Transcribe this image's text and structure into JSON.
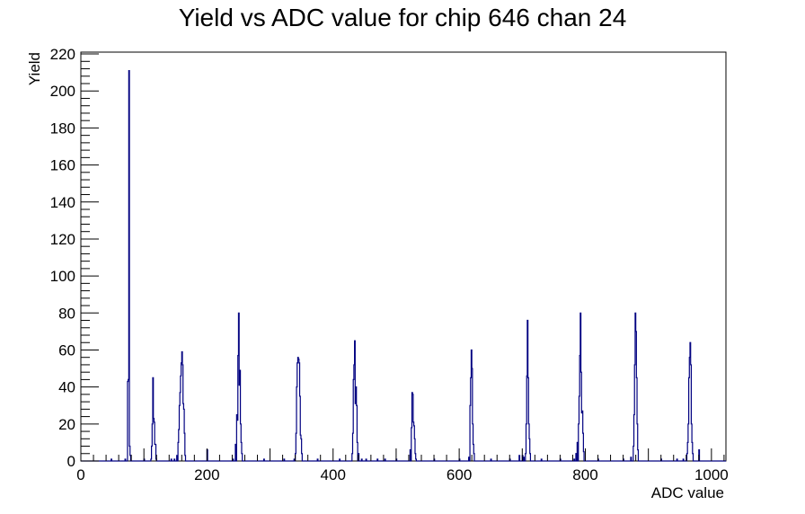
{
  "chart_data": {
    "type": "histogram",
    "title": "Yield vs ADC value for chip 646 chan 24",
    "xlabel": "ADC value",
    "ylabel": "Yield",
    "xlim": [
      0,
      1023
    ],
    "ylim": [
      0,
      221
    ],
    "x_ticks": [
      0,
      200,
      400,
      600,
      800,
      1000
    ],
    "y_ticks": [
      0,
      20,
      40,
      60,
      80,
      100,
      120,
      140,
      160,
      180,
      200,
      220
    ],
    "line_color": "#000080",
    "bins": [
      [
        48,
        1
      ],
      [
        70,
        1
      ],
      [
        74,
        43
      ],
      [
        75,
        44
      ],
      [
        76,
        211
      ],
      [
        77,
        8
      ],
      [
        78,
        3
      ],
      [
        100,
        1
      ],
      [
        111,
        1
      ],
      [
        112,
        8
      ],
      [
        113,
        20
      ],
      [
        114,
        45
      ],
      [
        115,
        23
      ],
      [
        116,
        21
      ],
      [
        117,
        9
      ],
      [
        118,
        9
      ],
      [
        119,
        1
      ],
      [
        143,
        1
      ],
      [
        148,
        1
      ],
      [
        152,
        3
      ],
      [
        154,
        10
      ],
      [
        155,
        17
      ],
      [
        156,
        30
      ],
      [
        157,
        37
      ],
      [
        158,
        46
      ],
      [
        159,
        53
      ],
      [
        160,
        59
      ],
      [
        161,
        52
      ],
      [
        162,
        31
      ],
      [
        163,
        28
      ],
      [
        164,
        15
      ],
      [
        165,
        3
      ],
      [
        200,
        6
      ],
      [
        241,
        1
      ],
      [
        245,
        9
      ],
      [
        247,
        25
      ],
      [
        248,
        22
      ],
      [
        249,
        57
      ],
      [
        250,
        80
      ],
      [
        251,
        41
      ],
      [
        252,
        49
      ],
      [
        253,
        20
      ],
      [
        254,
        10
      ],
      [
        255,
        4
      ],
      [
        290,
        1
      ],
      [
        322,
        1
      ],
      [
        338,
        1
      ],
      [
        340,
        4
      ],
      [
        341,
        15
      ],
      [
        342,
        40
      ],
      [
        343,
        53
      ],
      [
        344,
        56
      ],
      [
        345,
        55
      ],
      [
        346,
        53
      ],
      [
        347,
        35
      ],
      [
        348,
        14
      ],
      [
        349,
        12
      ],
      [
        350,
        4
      ],
      [
        375,
        1
      ],
      [
        410,
        1
      ],
      [
        430,
        4
      ],
      [
        431,
        15
      ],
      [
        432,
        44
      ],
      [
        433,
        52
      ],
      [
        434,
        65
      ],
      [
        435,
        31
      ],
      [
        436,
        40
      ],
      [
        437,
        30
      ],
      [
        438,
        10
      ],
      [
        440,
        4
      ],
      [
        445,
        1
      ],
      [
        452,
        1
      ],
      [
        470,
        1
      ],
      [
        482,
        1
      ],
      [
        500,
        1
      ],
      [
        522,
        6
      ],
      [
        524,
        18
      ],
      [
        525,
        37
      ],
      [
        526,
        36
      ],
      [
        527,
        21
      ],
      [
        528,
        19
      ],
      [
        529,
        12
      ],
      [
        530,
        4
      ],
      [
        531,
        1
      ],
      [
        560,
        1
      ],
      [
        600,
        1
      ],
      [
        615,
        2
      ],
      [
        617,
        30
      ],
      [
        618,
        45
      ],
      [
        619,
        60
      ],
      [
        620,
        50
      ],
      [
        621,
        20
      ],
      [
        622,
        9
      ],
      [
        623,
        4
      ],
      [
        650,
        1
      ],
      [
        680,
        1
      ],
      [
        695,
        3
      ],
      [
        700,
        3
      ],
      [
        702,
        2
      ],
      [
        705,
        4
      ],
      [
        706,
        20
      ],
      [
        707,
        46
      ],
      [
        708,
        76
      ],
      [
        709,
        45
      ],
      [
        710,
        20
      ],
      [
        711,
        12
      ],
      [
        712,
        4
      ],
      [
        730,
        1
      ],
      [
        760,
        1
      ],
      [
        782,
        1
      ],
      [
        785,
        4
      ],
      [
        787,
        10
      ],
      [
        789,
        20
      ],
      [
        790,
        35
      ],
      [
        791,
        57
      ],
      [
        792,
        80
      ],
      [
        793,
        48
      ],
      [
        794,
        26
      ],
      [
        795,
        27
      ],
      [
        796,
        15
      ],
      [
        797,
        5
      ],
      [
        820,
        1
      ],
      [
        860,
        1
      ],
      [
        872,
        2
      ],
      [
        876,
        8
      ],
      [
        877,
        25
      ],
      [
        878,
        52
      ],
      [
        879,
        80
      ],
      [
        880,
        70
      ],
      [
        881,
        45
      ],
      [
        882,
        20
      ],
      [
        883,
        6
      ],
      [
        920,
        1
      ],
      [
        945,
        1
      ],
      [
        955,
        1
      ],
      [
        961,
        4
      ],
      [
        962,
        10
      ],
      [
        963,
        20
      ],
      [
        964,
        45
      ],
      [
        965,
        56
      ],
      [
        966,
        64
      ],
      [
        967,
        52
      ],
      [
        968,
        20
      ],
      [
        969,
        10
      ],
      [
        970,
        4
      ],
      [
        980,
        6
      ]
    ]
  }
}
